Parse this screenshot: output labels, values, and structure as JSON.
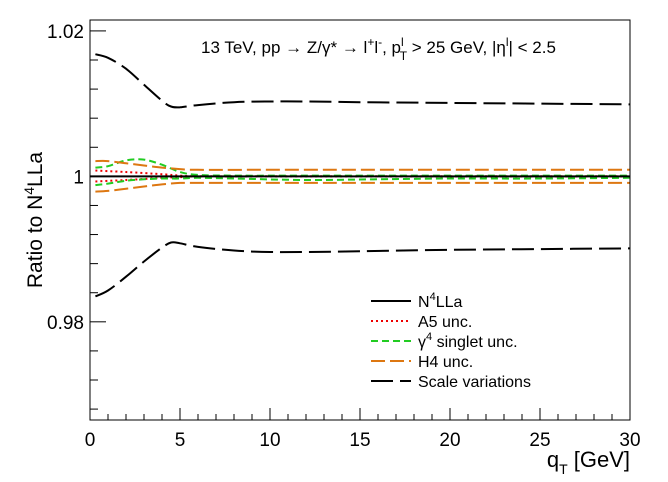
{
  "chart_data": {
    "type": "line",
    "annotation": {
      "prefix": "13 TeV, pp ",
      "arrow1": "→",
      "process": " Z/γ* ",
      "arrow2": "→",
      "lepton": " l",
      "lepton_plus": "+",
      "lepton2": "l",
      "lepton_minus": "-",
      "pt_sep": ", p",
      "pt_sup": "l",
      "pt_sub": "T",
      "pt_cut": " > 25 GeV, |η",
      "eta_sup": "l",
      "eta_cut": "| < 2.5"
    },
    "ylabel": {
      "prefix": "Ratio to N",
      "sup": "4",
      "suffix": "LLa"
    },
    "xlabel": {
      "main": "q",
      "sub": "T",
      "suffix": " [GeV]"
    },
    "xlim": [
      0,
      30
    ],
    "ylim": [
      0.9665,
      1.0215
    ],
    "xticks": [
      0,
      5,
      10,
      15,
      20,
      25,
      30
    ],
    "xtick_labels": [
      "0",
      "5",
      "10",
      "15",
      "20",
      "25",
      "30"
    ],
    "yticks": [
      0.98,
      1.0,
      1.02
    ],
    "ytick_labels": [
      "0.98",
      "1",
      "1.02"
    ],
    "legend": [
      {
        "series": "n4lla",
        "label": "N",
        "sup": "4",
        "suffix": "LLa"
      },
      {
        "series": "a5",
        "label": "A5 unc.",
        "sup": "",
        "suffix": ""
      },
      {
        "series": "gamma4",
        "label": "γ",
        "sup": "4",
        "suffix": " singlet unc."
      },
      {
        "series": "h4",
        "label": "H4 unc.",
        "sup": "",
        "suffix": ""
      },
      {
        "series": "scale",
        "label": "Scale variations",
        "sup": "",
        "suffix": ""
      }
    ],
    "series": [
      {
        "name": "N4LLa",
        "key": "n4lla",
        "color": "#000000",
        "dash": "",
        "width": 2,
        "x": [
          0,
          30
        ],
        "y": [
          1.0,
          1.0
        ]
      },
      {
        "name": "A5 unc. up",
        "key": "a5",
        "color": "#ee0000",
        "dash": "2 3",
        "width": 2,
        "x": [
          0.3,
          2,
          4,
          5,
          6,
          10,
          20,
          30
        ],
        "y": [
          1.0008,
          1.0006,
          1.0003,
          1.0001,
          1.0,
          1.0,
          1.0,
          1.0
        ]
      },
      {
        "name": "A5 unc. down",
        "key": "a5",
        "color": "#ee0000",
        "dash": "2 3",
        "width": 2,
        "x": [
          0.3,
          2,
          4,
          5,
          6,
          10,
          20,
          30
        ],
        "y": [
          0.9993,
          0.9995,
          0.9998,
          0.9999,
          1.0,
          1.0,
          1.0,
          1.0
        ]
      },
      {
        "name": "gamma4 singlet unc. up",
        "key": "gamma4",
        "color": "#22cc22",
        "dash": "7 4",
        "width": 2,
        "x": [
          0.3,
          1,
          2,
          3,
          4,
          5,
          6,
          8,
          12,
          16,
          20,
          25,
          30
        ],
        "y": [
          1.0012,
          1.0014,
          1.0022,
          1.0023,
          1.0016,
          1.0006,
          1.0002,
          1.0001,
          1.0001,
          1.0001,
          1.0001,
          1.0001,
          1.0001
        ]
      },
      {
        "name": "gamma4 singlet unc. down",
        "key": "gamma4",
        "color": "#22cc22",
        "dash": "7 4",
        "width": 2,
        "x": [
          0.3,
          1,
          2,
          3,
          4,
          5,
          6,
          8,
          12,
          16,
          20,
          25,
          30
        ],
        "y": [
          0.9988,
          0.999,
          0.9994,
          0.9996,
          0.9997,
          0.9997,
          0.9998,
          0.9997,
          0.9995,
          0.9996,
          0.9997,
          0.9997,
          0.9998
        ]
      },
      {
        "name": "H4 unc. up",
        "key": "h4",
        "color": "#dd7711",
        "dash": "14 5",
        "width": 2,
        "x": [
          0.3,
          1,
          2,
          3,
          4,
          5,
          6,
          10,
          20,
          30
        ],
        "y": [
          1.0021,
          1.0021,
          1.0018,
          1.0015,
          1.0012,
          1.001,
          1.0009,
          1.0009,
          1.0009,
          1.0009
        ]
      },
      {
        "name": "H4 unc. down",
        "key": "h4",
        "color": "#dd7711",
        "dash": "14 5",
        "width": 2,
        "x": [
          0.3,
          1,
          2,
          3,
          4,
          5,
          6,
          10,
          20,
          30
        ],
        "y": [
          0.9979,
          0.998,
          0.9983,
          0.9986,
          0.9989,
          0.9991,
          0.9991,
          0.9991,
          0.9991,
          0.9991
        ]
      },
      {
        "name": "Scale variations up",
        "key": "scale",
        "color": "#000000",
        "dash": "22 7",
        "width": 2,
        "x": [
          0.3,
          1,
          2,
          3,
          4,
          4.5,
          5,
          6,
          8,
          10,
          12,
          15,
          20,
          25,
          30
        ],
        "y": [
          1.0168,
          1.0163,
          1.0148,
          1.0126,
          1.0104,
          1.0096,
          1.0095,
          1.0098,
          1.0102,
          1.0103,
          1.0103,
          1.0102,
          1.0101,
          1.01,
          1.0099
        ]
      },
      {
        "name": "Scale variations down",
        "key": "scale",
        "color": "#000000",
        "dash": "22 7",
        "width": 2,
        "x": [
          0.3,
          1,
          2,
          3,
          4,
          4.5,
          5,
          6,
          8,
          10,
          12,
          15,
          20,
          25,
          30
        ],
        "y": [
          0.9835,
          0.9843,
          0.9862,
          0.9883,
          0.9902,
          0.9909,
          0.9908,
          0.9903,
          0.9898,
          0.9896,
          0.9896,
          0.9897,
          0.9899,
          0.99,
          0.9901
        ]
      }
    ]
  }
}
